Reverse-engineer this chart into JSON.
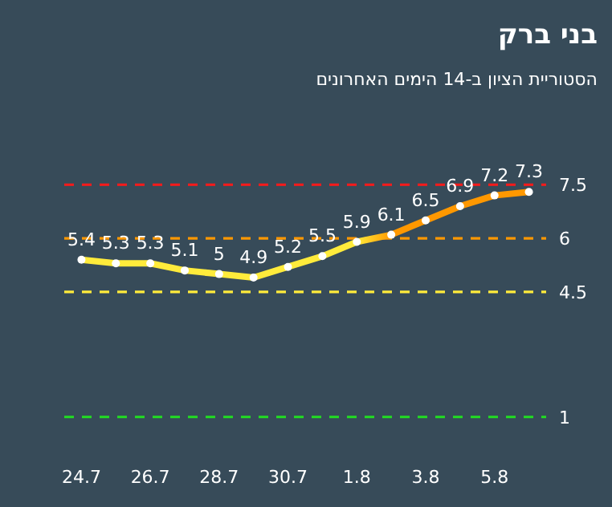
{
  "chart_data": {
    "type": "line",
    "title": "בני ברק",
    "subtitle": "הסטוריית הציון ב-14 הימים האחרונים",
    "categories": [
      "24.7",
      null,
      "26.7",
      null,
      "28.7",
      null,
      "30.7",
      null,
      "1.8",
      null,
      "3.8",
      null,
      "5.8",
      null
    ],
    "series": [
      {
        "values": [
          5.4,
          5.3,
          5.3,
          5.1,
          5,
          4.9,
          5.2,
          5.5,
          5.9,
          6.1,
          6.5,
          6.9,
          7.2,
          7.3
        ],
        "colors": [
          "#ffeb3b",
          "#ffeb3b",
          "#ffeb3b",
          "#ffeb3b",
          "#ffeb3b",
          "#ffeb3b",
          "#ffeb3b",
          "#ffeb3b",
          "#ffeb3b",
          "#ff9800",
          "#ff9800",
          "#ff9800",
          "#ff9800",
          "#ff9800"
        ]
      }
    ],
    "data_labels": true,
    "marker": "circle",
    "line_style": "solid",
    "ref_lines": [
      {
        "axis": "y",
        "value": 7.5,
        "label": "7.5",
        "color": "#ff1a1a",
        "line_style": "dashed"
      },
      {
        "axis": "y",
        "value": 6,
        "label": "6",
        "color": "#ff9800",
        "line_style": "dashed"
      },
      {
        "axis": "y",
        "value": 4.5,
        "label": "4.5",
        "color": "#ffeb3b",
        "line_style": "dashed"
      },
      {
        "axis": "y",
        "value": 1,
        "label": "1",
        "color": "#22dd22",
        "line_style": "dashed"
      }
    ]
  }
}
